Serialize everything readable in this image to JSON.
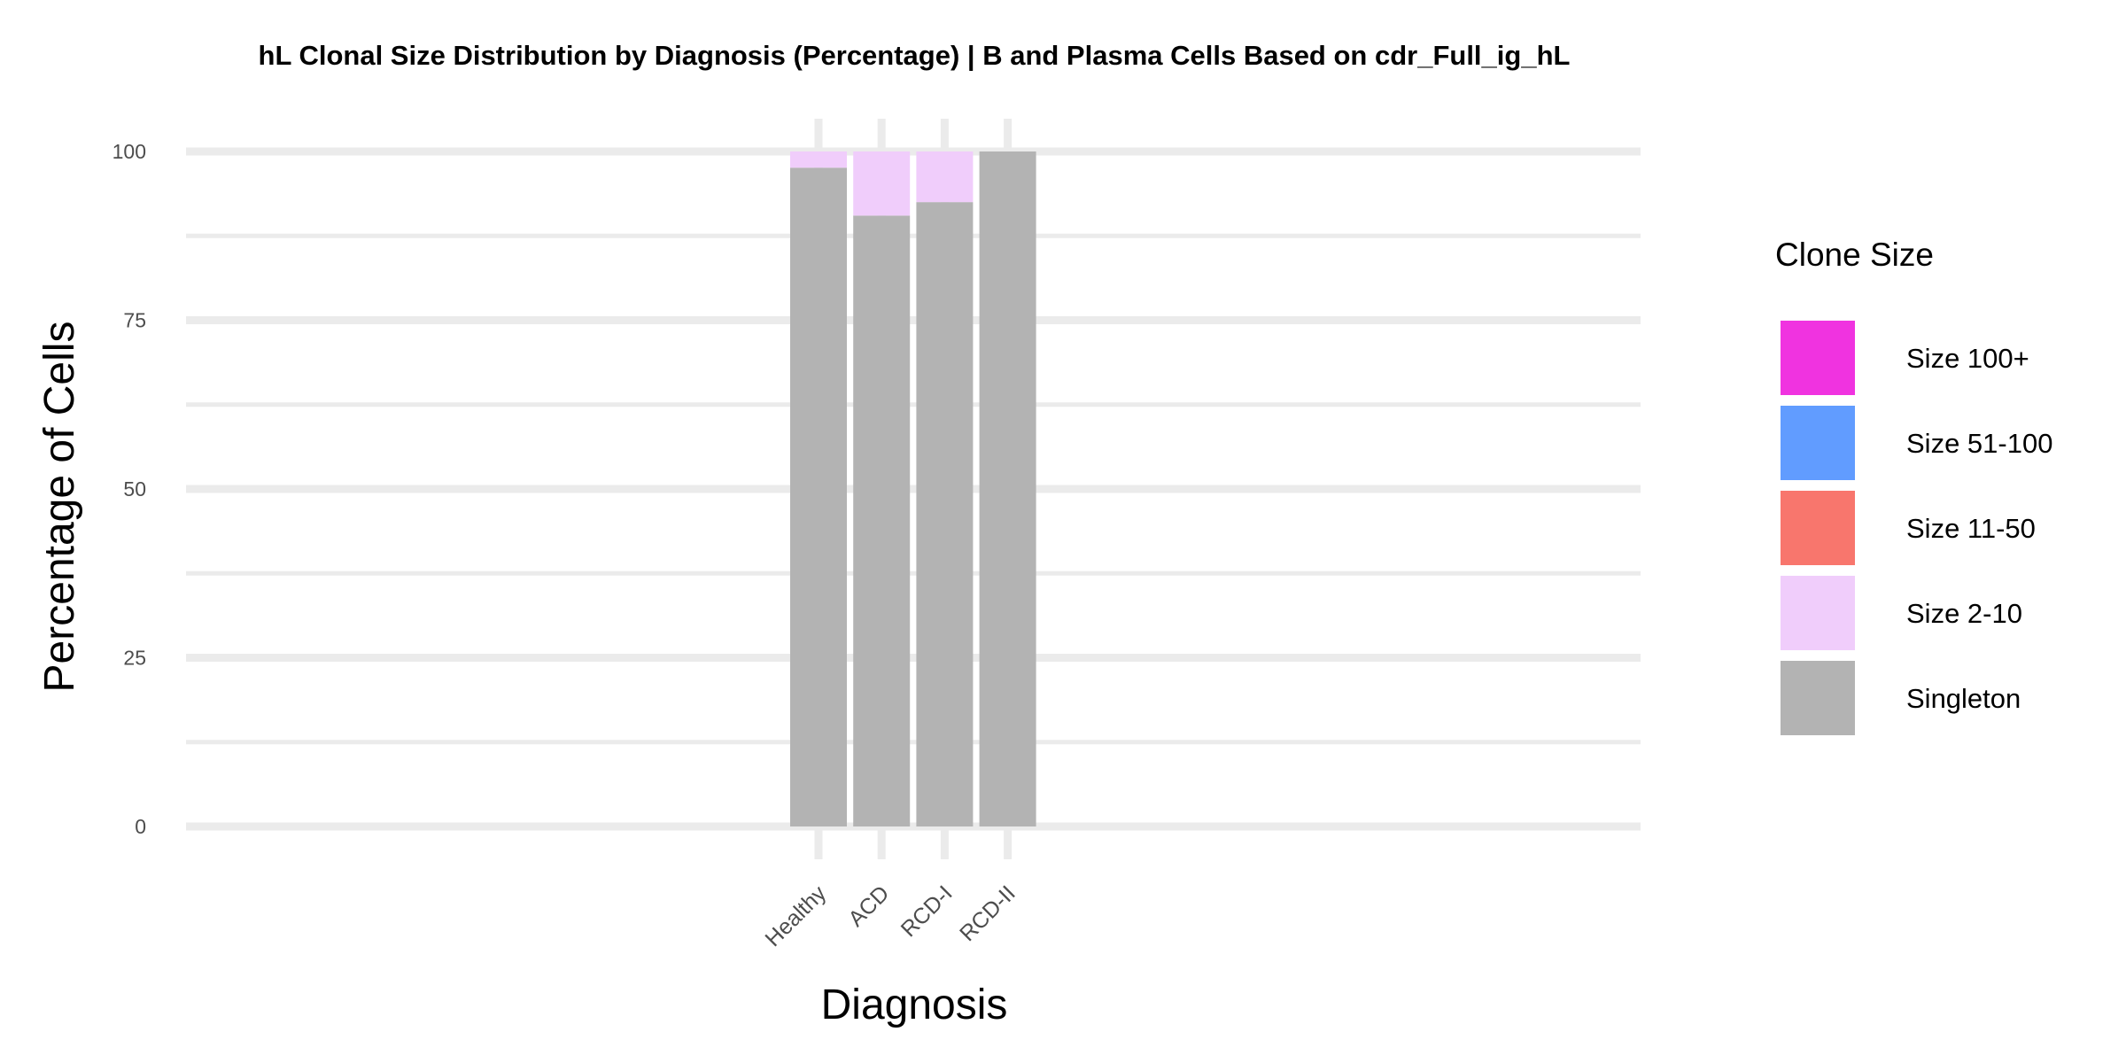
{
  "chart_data": {
    "type": "bar",
    "stacked": true,
    "title": "hL Clonal Size Distribution by Diagnosis (Percentage) | B and Plasma Cells Based on cdr_Full_ig_hL",
    "xlabel": "Diagnosis",
    "ylabel": "Percentage of Cells",
    "categories": [
      "Healthy",
      "ACD",
      "RCD-I",
      "RCD-II"
    ],
    "ylim": [
      0,
      100
    ],
    "yticks": [
      "0",
      "25",
      "50",
      "75",
      "100"
    ],
    "grid": true,
    "legend": {
      "title": "Clone Size",
      "placement": "right"
    },
    "series": [
      {
        "name": "Singleton",
        "color": "#b3b3b3",
        "values": [
          97.6,
          90.5,
          92.5,
          100
        ]
      },
      {
        "name": "Size 2-10",
        "color": "#f0cdfb",
        "values": [
          2.4,
          9.5,
          7.5,
          0
        ]
      },
      {
        "name": "Size 11-50",
        "color": "#f8766d",
        "values": [
          0,
          0,
          0,
          0
        ]
      },
      {
        "name": "Size 51-100",
        "color": "#619cff",
        "values": [
          0,
          0,
          0,
          0
        ]
      },
      {
        "name": "Size 100+",
        "color": "#f033e0",
        "values": [
          0,
          0,
          0,
          0
        ]
      }
    ],
    "legend_order": [
      "Size 100+",
      "Size 51-100",
      "Size 11-50",
      "Size 2-10",
      "Singleton"
    ]
  }
}
